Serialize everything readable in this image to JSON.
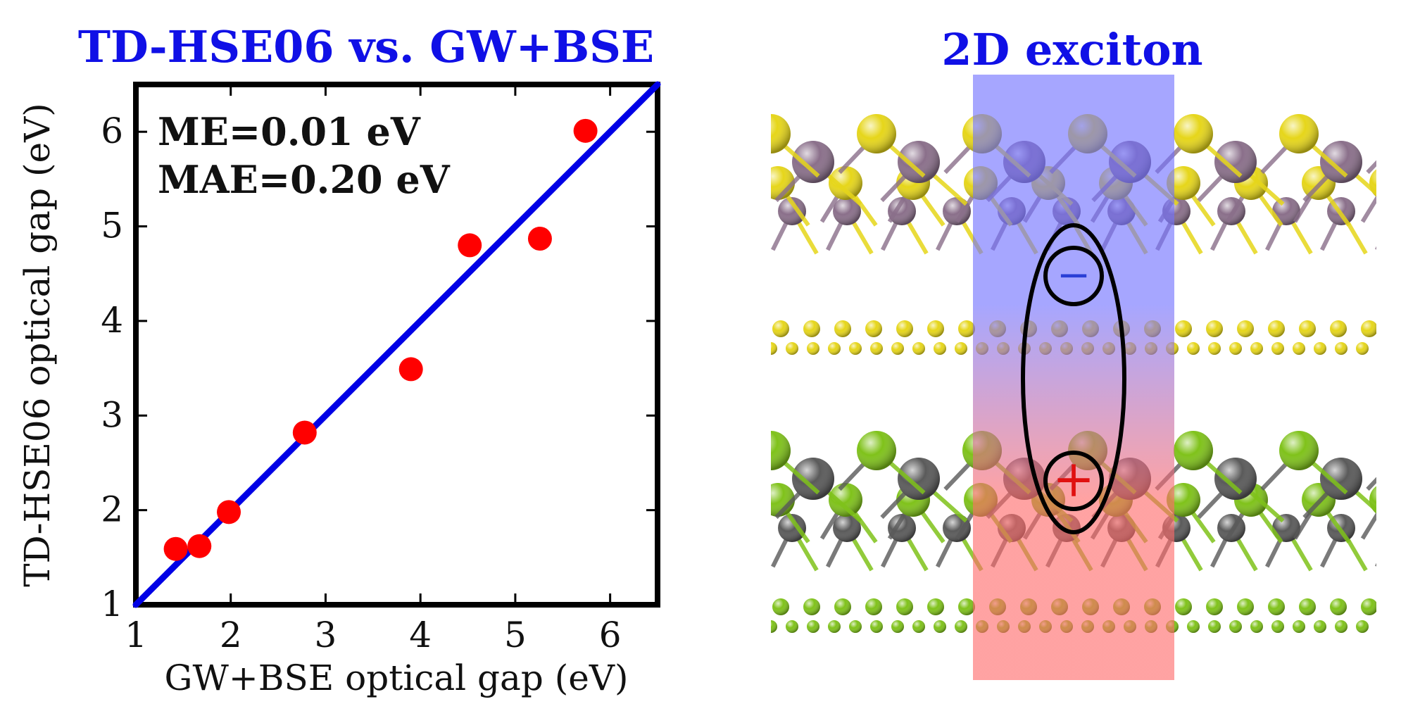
{
  "left_panel": {
    "title": "TD-HSE06 vs. GW+BSE"
  },
  "right_panel": {
    "title": "2D exciton",
    "electron_symbol": "−",
    "hole_symbol": "+",
    "colors": {
      "electron_region": "#7070ff",
      "hole_region": "#ff6a6a",
      "top_layer_metal": "#8a6f8a",
      "top_layer_chalcogen": "#e6d61a",
      "bottom_layer_metal": "#5a5a5a",
      "bottom_layer_chalcogen": "#7fc21a",
      "electron_sign": "#2a3fd6",
      "hole_sign": "#e01010",
      "outline": "#000000"
    }
  },
  "chart_data": {
    "type": "scatter",
    "title": "TD-HSE06 vs. GW+BSE",
    "xlabel": "GW+BSE optical gap (eV)",
    "ylabel": "TD-HSE06 optical gap (eV)",
    "xlim": [
      1,
      6.5
    ],
    "ylim": [
      1,
      6.5
    ],
    "xticks": [
      1,
      2,
      3,
      4,
      5,
      6
    ],
    "yticks": [
      1,
      2,
      3,
      4,
      5,
      6
    ],
    "grid": false,
    "annotations": [
      "ME=0.01 eV",
      "MAE=0.20 eV"
    ],
    "points": [
      {
        "x": 1.42,
        "y": 1.59
      },
      {
        "x": 1.67,
        "y": 1.62
      },
      {
        "x": 1.98,
        "y": 1.98
      },
      {
        "x": 2.78,
        "y": 2.82
      },
      {
        "x": 3.9,
        "y": 3.49
      },
      {
        "x": 4.52,
        "y": 4.8
      },
      {
        "x": 5.26,
        "y": 4.87
      },
      {
        "x": 5.74,
        "y": 6.01
      }
    ],
    "reference_line": {
      "from": [
        1,
        1
      ],
      "to": [
        6.5,
        6.5
      ]
    },
    "colors": {
      "points": "#ff0000",
      "line": "#0000e6",
      "frame": "#000000"
    }
  }
}
